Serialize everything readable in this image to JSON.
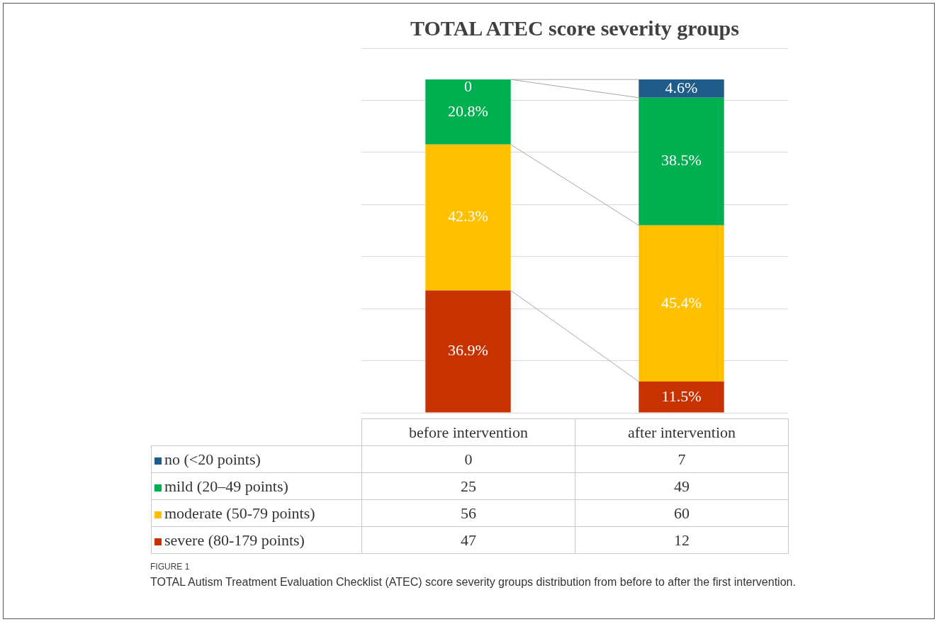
{
  "chart_data": {
    "type": "bar",
    "title": "TOTAL ATEC score severity groups",
    "categories": [
      "before intervention",
      "after intervention"
    ],
    "stacked": true,
    "series": [
      {
        "name": "severe (80-179 points)",
        "color": "#c83200",
        "values": [
          47,
          12
        ]
      },
      {
        "name": "moderate (50-79 points)",
        "color": "#ffc000",
        "values": [
          56,
          60
        ]
      },
      {
        "name": "mild (20–49 points)",
        "color": "#00b050",
        "values": [
          25,
          49
        ]
      },
      {
        "name": "no (<20 points)",
        "color": "#1f5c8a",
        "values": [
          0,
          7
        ]
      }
    ],
    "tick_labels": false,
    "data_labels": true,
    "legend": "bottom",
    "annotations": [
      "FIGURE 1",
      "TOTAL Autism Treatment Evaluation Checklist (ATEC) score severity groups distribution from before to after the first intervention.",
      "36.9%",
      "42.3%",
      "20.8%",
      "0",
      "11.5%",
      "45.4%",
      "38.5%",
      "4.6%"
    ],
    "grid": "y"
  }
}
